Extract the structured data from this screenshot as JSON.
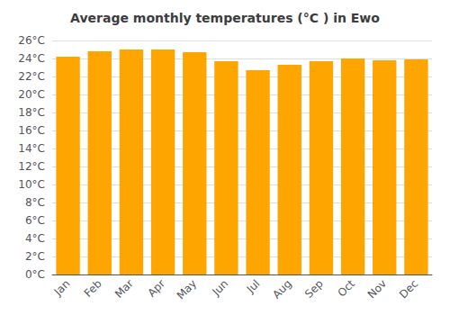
{
  "chart_data": {
    "type": "bar",
    "title": "Average monthly temperatures (°C ) in Ewo",
    "categories": [
      "Jan",
      "Feb",
      "Mar",
      "Apr",
      "May",
      "Jun",
      "Jul",
      "Aug",
      "Sep",
      "Oct",
      "Nov",
      "Dec"
    ],
    "values": [
      24.2,
      24.8,
      25.0,
      25.0,
      24.7,
      23.7,
      22.7,
      23.3,
      23.7,
      24.0,
      23.8,
      23.9
    ],
    "color": "#FFA500",
    "ylim": [
      0,
      26
    ],
    "yticks": [
      {
        "value": 0,
        "label": "0°C"
      },
      {
        "value": 2,
        "label": "2°C"
      },
      {
        "value": 4,
        "label": "4°C"
      },
      {
        "value": 6,
        "label": "6°C"
      },
      {
        "value": 8,
        "label": "8°C"
      },
      {
        "value": 10,
        "label": "10°C"
      },
      {
        "value": 12,
        "label": "12°C"
      },
      {
        "value": 14,
        "label": "14°C"
      },
      {
        "value": 16,
        "label": "16°C"
      },
      {
        "value": 18,
        "label": "18°C"
      },
      {
        "value": 20,
        "label": "20°C"
      },
      {
        "value": 22,
        "label": "22°C"
      },
      {
        "value": 24,
        "label": "24°C"
      },
      {
        "value": 26,
        "label": "26°C"
      }
    ],
    "grid": true
  }
}
